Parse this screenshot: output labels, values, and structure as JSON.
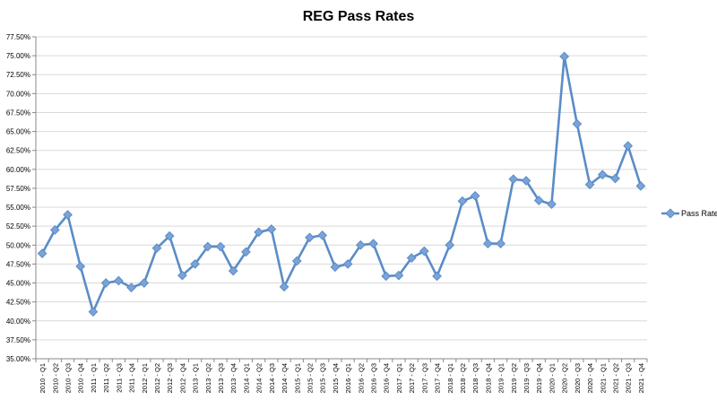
{
  "chart_data": {
    "type": "line",
    "title": "REG Pass Rates",
    "xlabel": "",
    "ylabel": "",
    "ylim": [
      35,
      77.5
    ],
    "ytick_step": 2.5,
    "y_format": "percent_2dp",
    "grid": "horizontal",
    "legend_position": "right",
    "series_color": "#5b8cc8",
    "categories": [
      "2010 - Q1",
      "2010 - Q2",
      "2010 - Q3",
      "2010 - Q4",
      "2011 - Q1",
      "2011 - Q2",
      "2011 - Q3",
      "2011 - Q4",
      "2012 - Q1",
      "2012 - Q2",
      "2012 - Q3",
      "2012 - Q4",
      "2013 - Q1",
      "2013 - Q2",
      "2013 - Q3",
      "2013 - Q4",
      "2014 - Q1",
      "2014 - Q2",
      "2014 - Q3",
      "2014 - Q4",
      "2015 - Q1",
      "2015 - Q2",
      "2015 - Q3",
      "2015 - Q4",
      "2016 - Q1",
      "2016 - Q2",
      "2016 - Q3",
      "2016 - Q4",
      "2017 - Q1",
      "2017 - Q2",
      "2017 - Q3",
      "2017 - Q4",
      "2018 - Q1",
      "2018 - Q2",
      "2018 - Q3",
      "2018 - Q4",
      "2019 - Q1",
      "2019 - Q2",
      "2019 - Q3",
      "2019 - Q4",
      "2020 - Q1",
      "2020 - Q2",
      "2020 - Q3",
      "2020 - Q4",
      "2021 - Q1",
      "2021 - Q2",
      "2021 - Q3",
      "2021 - Q4"
    ],
    "series": [
      {
        "name": "Pass Rate",
        "values": [
          48.9,
          52.0,
          54.0,
          47.2,
          41.2,
          45.0,
          45.3,
          44.4,
          45.0,
          49.6,
          51.2,
          46.0,
          47.5,
          49.8,
          49.8,
          46.6,
          49.1,
          51.7,
          52.1,
          44.5,
          47.9,
          51.0,
          51.3,
          47.1,
          47.5,
          50.0,
          50.2,
          45.9,
          46.0,
          48.3,
          49.2,
          45.9,
          50.0,
          55.8,
          56.5,
          50.2,
          50.2,
          58.7,
          58.5,
          55.9,
          55.4,
          74.9,
          66.0,
          58.0,
          59.3,
          58.8,
          63.1,
          57.8
        ]
      }
    ]
  }
}
